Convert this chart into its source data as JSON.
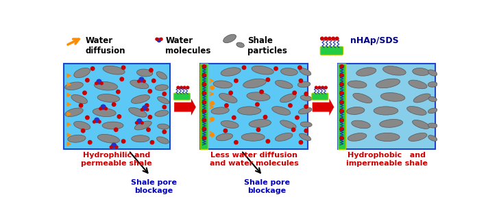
{
  "panel1_label": "Hydrophilic and\npermeable shale",
  "panel2_label": "Less water diffusion\nand water molecules",
  "panel3_label": "Hydrophobic   and\nimpermeable shale",
  "blockage1_label": "Shale pore\nblockage",
  "blockage2_label": "Shale pore\nblockage",
  "panel_bg": "#5BC8F5",
  "panel3_bg": "#87CEEB",
  "shale_color": "#888888",
  "shale_edge": "#555555",
  "red_dot_color": "#CC0000",
  "blue_dot_color": "#2233CC",
  "orange_color": "#FF8C00",
  "green_color": "#22CC44",
  "green_edge": "#AACC00",
  "red_arrow_color": "#DD0000",
  "text_red": "#CC0000",
  "text_blue": "#0000BB",
  "text_black": "#000000",
  "text_dark_blue": "#000088",
  "panel_border": "#2244CC"
}
